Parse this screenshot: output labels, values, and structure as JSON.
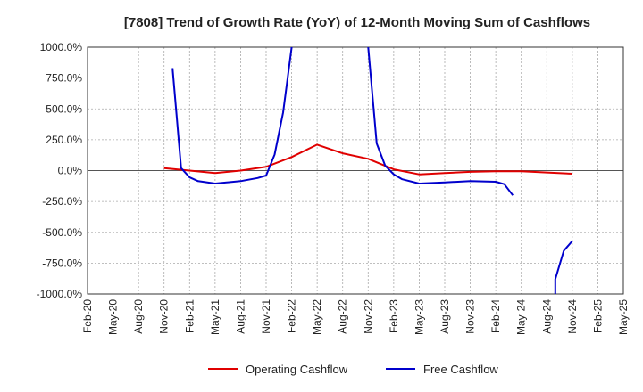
{
  "chart_data": {
    "type": "line",
    "title": "[7808]  Trend of Growth Rate (YoY) of 12-Month Moving Sum of Cashflows",
    "xlabel": "",
    "ylabel": "",
    "x_ticks": [
      "Feb-20",
      "May-20",
      "Aug-20",
      "Nov-20",
      "Feb-21",
      "May-21",
      "Aug-21",
      "Nov-21",
      "Feb-22",
      "May-22",
      "Aug-22",
      "Nov-22",
      "Feb-23",
      "May-23",
      "Aug-23",
      "Nov-23",
      "Feb-24",
      "May-24",
      "Aug-24",
      "Nov-24",
      "Feb-25",
      "May-25"
    ],
    "y_ticks": [
      "1000.0%",
      "750.0%",
      "500.0%",
      "250.0%",
      "0.0%",
      "-250.0%",
      "-500.0%",
      "-750.0%",
      "-1000.0%"
    ],
    "ylim": [
      -1000,
      1000
    ],
    "grid": true,
    "legend": "bottom",
    "series": [
      {
        "name": "Operating Cashflow",
        "color": "#e00000",
        "points": [
          [
            "Nov-20",
            20
          ],
          [
            "Feb-21",
            0
          ],
          [
            "May-21",
            -20
          ],
          [
            "Aug-21",
            0
          ],
          [
            "Nov-21",
            30
          ],
          [
            "Feb-22",
            110
          ],
          [
            "May-22",
            210
          ],
          [
            "Aug-22",
            140
          ],
          [
            "Nov-22",
            95
          ],
          [
            "Feb-23",
            10
          ],
          [
            "May-23",
            -30
          ],
          [
            "Aug-23",
            -20
          ],
          [
            "Nov-23",
            -10
          ],
          [
            "Feb-24",
            -5
          ],
          [
            "May-24",
            -5
          ],
          [
            "Aug-24",
            -15
          ],
          [
            "Nov-24",
            -25
          ]
        ]
      },
      {
        "name": "Free Cashflow",
        "color": "#0000cc",
        "segments": [
          [
            [
              "Dec-20",
              830
            ],
            [
              "Jan-21",
              20
            ],
            [
              "Feb-21",
              -55
            ],
            [
              "Mar-21",
              -85
            ],
            [
              "May-21",
              -105
            ],
            [
              "Aug-21",
              -85
            ],
            [
              "Oct-21",
              -60
            ],
            [
              "Nov-21",
              -40
            ],
            [
              "Dec-21",
              130
            ],
            [
              "Jan-22",
              470
            ],
            [
              "Feb-22",
              1000
            ]
          ],
          [
            [
              "Nov-22",
              1000
            ],
            [
              "Dec-22",
              220
            ],
            [
              "Jan-23",
              40
            ],
            [
              "Feb-23",
              -30
            ],
            [
              "Mar-23",
              -70
            ],
            [
              "May-23",
              -105
            ],
            [
              "Aug-23",
              -95
            ],
            [
              "Nov-23",
              -85
            ],
            [
              "Feb-24",
              -90
            ],
            [
              "Mar-24",
              -110
            ],
            [
              "Apr-24",
              -200
            ]
          ],
          [
            [
              "Sep-24",
              -1000
            ],
            [
              "Sep-24",
              -880
            ],
            [
              "Oct-24",
              -650
            ],
            [
              "Nov-24",
              -570
            ]
          ]
        ]
      }
    ]
  }
}
